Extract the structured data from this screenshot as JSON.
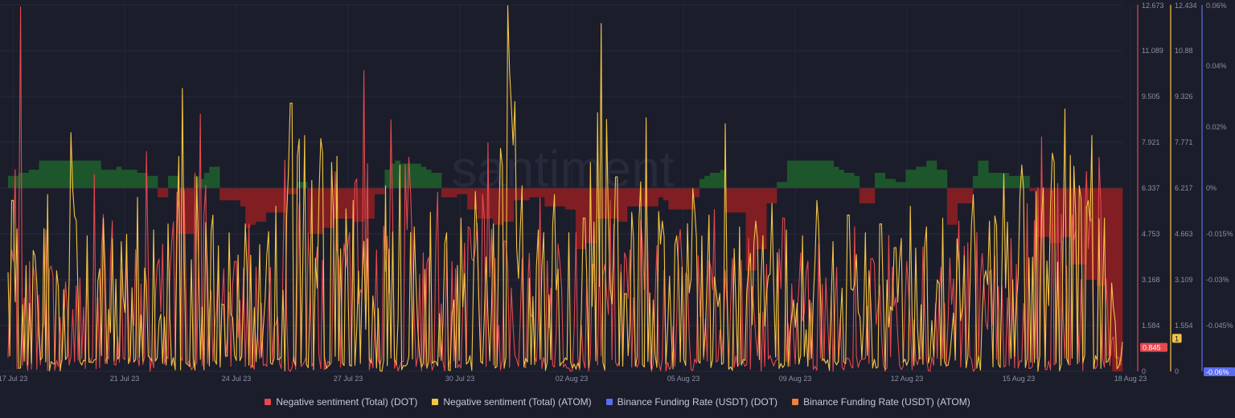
{
  "chart_data": {
    "type": "line",
    "watermark": "santiment",
    "x_ticks": [
      "17 Jul 23",
      "21 Jul 23",
      "24 Jul 23",
      "27 Jul 23",
      "30 Jul 23",
      "02 Aug 23",
      "05 Aug 23",
      "09 Aug 23",
      "12 Aug 23",
      "15 Aug 23",
      "18 Aug 23"
    ],
    "axes": {
      "dot_sentiment": {
        "ticks": [
          "12.673",
          "11.089",
          "9.505",
          "7.921",
          "6.337",
          "4.753",
          "3.168",
          "1.584",
          "0"
        ],
        "range": [
          0,
          12.673
        ],
        "color": "#e5484d"
      },
      "atom_sentiment": {
        "ticks": [
          "12.434",
          "10.88",
          "9.326",
          "7.771",
          "6.217",
          "4.663",
          "3.109",
          "1.554",
          "0"
        ],
        "range": [
          0,
          12.434
        ],
        "color": "#f5c542"
      },
      "funding_rate": {
        "ticks": [
          "0.06%",
          "0.04%",
          "0.02%",
          "0%",
          "-0.015%",
          "-0.03%",
          "-0.045%",
          "-0.06%"
        ],
        "range": [
          -0.06,
          0.06
        ],
        "color": "#5b6cf0"
      }
    },
    "last_values": {
      "dot_sentiment": "0.845",
      "atom_sentiment": "1",
      "funding_rate": "-0.06%"
    },
    "series": [
      {
        "name": "Negative sentiment (Total) (DOT)",
        "color": "#e5484d",
        "type": "line",
        "peaks": [
          [
            0.3,
            4.2
          ],
          [
            1.1,
            12.6
          ],
          [
            1.9,
            3.8
          ],
          [
            3.4,
            4.9
          ],
          [
            5.2,
            3.1
          ],
          [
            7.8,
            6.8
          ],
          [
            9.3,
            5.2
          ],
          [
            10.6,
            4.1
          ],
          [
            12.4,
            7.6
          ],
          [
            13.9,
            4.4
          ],
          [
            15.1,
            6.2
          ],
          [
            17.2,
            8.9
          ],
          [
            18.8,
            4.0
          ],
          [
            20.4,
            3.8
          ],
          [
            21.6,
            5.1
          ],
          [
            23.5,
            3.6
          ],
          [
            24.9,
            7.3
          ],
          [
            26.2,
            5.8
          ],
          [
            27.8,
            4.3
          ],
          [
            29.4,
            6.9
          ],
          [
            30.6,
            4.8
          ],
          [
            31.9,
            10.4
          ],
          [
            33.1,
            4.2
          ],
          [
            34.4,
            8.7
          ],
          [
            35.9,
            7.4
          ],
          [
            37.2,
            4.1
          ],
          [
            38.6,
            6.2
          ],
          [
            39.8,
            3.8
          ],
          [
            41.3,
            5.0
          ],
          [
            43.0,
            7.9
          ],
          [
            44.6,
            4.5
          ],
          [
            46.1,
            3.9
          ],
          [
            47.8,
            6.0
          ],
          [
            49.3,
            4.4
          ],
          [
            51.0,
            4.8
          ],
          [
            52.5,
            3.7
          ],
          [
            54.1,
            5.9
          ],
          [
            55.8,
            4.2
          ],
          [
            57.2,
            6.7
          ],
          [
            58.9,
            3.5
          ],
          [
            60.3,
            4.9
          ],
          [
            61.9,
            4.0
          ],
          [
            63.4,
            5.6
          ],
          [
            65.0,
            3.9
          ],
          [
            66.5,
            4.6
          ],
          [
            68.0,
            3.7
          ],
          [
            69.6,
            5.3
          ],
          [
            71.2,
            4.1
          ],
          [
            72.7,
            4.4
          ],
          [
            74.3,
            3.6
          ],
          [
            75.9,
            5.0
          ],
          [
            77.5,
            3.9
          ],
          [
            79.0,
            4.7
          ],
          [
            80.6,
            3.8
          ],
          [
            82.1,
            4.3
          ],
          [
            83.7,
            3.6
          ],
          [
            85.3,
            5.2
          ],
          [
            86.9,
            4.8
          ],
          [
            88.5,
            4.0
          ],
          [
            90.0,
            4.6
          ],
          [
            91.5,
            5.8
          ],
          [
            92.8,
            8.1
          ],
          [
            94.2,
            6.5
          ],
          [
            95.5,
            5.4
          ],
          [
            96.8,
            6.9
          ],
          [
            97.9,
            7.4
          ],
          [
            98.6,
            3.2
          ],
          [
            99.2,
            1.2
          ],
          [
            100,
            0.845
          ]
        ]
      },
      {
        "name": "Negative sentiment (Total) (ATOM)",
        "color": "#f5c542",
        "type": "line",
        "peaks": [
          [
            0.4,
            5.8
          ],
          [
            2.3,
            4.1
          ],
          [
            3.5,
            6.0
          ],
          [
            5.7,
            8.1
          ],
          [
            7.1,
            4.6
          ],
          [
            8.6,
            5.2
          ],
          [
            10.1,
            4.4
          ],
          [
            11.6,
            5.9
          ],
          [
            13.0,
            4.8
          ],
          [
            14.3,
            5.0
          ],
          [
            15.7,
            9.6
          ],
          [
            17.0,
            6.6
          ],
          [
            18.4,
            5.3
          ],
          [
            19.9,
            4.7
          ],
          [
            21.3,
            5.0
          ],
          [
            22.6,
            4.3
          ],
          [
            24.0,
            5.6
          ],
          [
            25.4,
            9.1
          ],
          [
            26.6,
            8.0
          ],
          [
            28.0,
            7.9
          ],
          [
            29.5,
            7.3
          ],
          [
            31.0,
            5.8
          ],
          [
            32.3,
            4.5
          ],
          [
            33.8,
            6.3
          ],
          [
            35.2,
            7.0
          ],
          [
            36.4,
            4.9
          ],
          [
            37.9,
            5.4
          ],
          [
            39.3,
            4.7
          ],
          [
            40.6,
            5.2
          ],
          [
            42.0,
            6.1
          ],
          [
            43.5,
            5.0
          ],
          [
            44.9,
            12.4
          ],
          [
            46.2,
            6.3
          ],
          [
            47.6,
            4.8
          ],
          [
            49.0,
            6.0
          ],
          [
            50.3,
            4.7
          ],
          [
            51.7,
            5.2
          ],
          [
            53.2,
            11.8
          ],
          [
            54.6,
            6.6
          ],
          [
            56.0,
            5.4
          ],
          [
            57.3,
            8.6
          ],
          [
            58.7,
            5.1
          ],
          [
            60.0,
            4.6
          ],
          [
            61.4,
            6.2
          ],
          [
            62.9,
            5.3
          ],
          [
            64.3,
            8.4
          ],
          [
            65.7,
            4.9
          ],
          [
            67.1,
            5.1
          ],
          [
            68.5,
            5.7
          ],
          [
            69.8,
            4.8
          ],
          [
            71.3,
            4.6
          ],
          [
            72.6,
            5.8
          ],
          [
            74.0,
            4.4
          ],
          [
            75.4,
            5.3
          ],
          [
            76.9,
            4.7
          ],
          [
            78.3,
            5.0
          ],
          [
            79.6,
            4.2
          ],
          [
            81.0,
            5.6
          ],
          [
            82.4,
            4.9
          ],
          [
            83.9,
            5.2
          ],
          [
            85.2,
            4.5
          ],
          [
            86.6,
            6.0
          ],
          [
            88.0,
            5.1
          ],
          [
            89.4,
            6.7
          ],
          [
            90.9,
            7.0
          ],
          [
            92.3,
            6.1
          ],
          [
            93.7,
            7.4
          ],
          [
            94.9,
            8.9
          ],
          [
            96.2,
            6.3
          ],
          [
            97.3,
            8.0
          ],
          [
            98.4,
            5.2
          ],
          [
            99.1,
            3.0
          ],
          [
            100,
            1.0
          ]
        ]
      },
      {
        "name": "Binance Funding Rate (USDT) (DOT)",
        "color": "#5b6cf0",
        "type": "bar",
        "values": []
      },
      {
        "name": "Binance Funding Rate (USDT) (ATOM)",
        "color": "#f0803c",
        "type": "bar",
        "values": [
          0.004,
          0.004,
          0.005,
          0.005,
          0.006,
          0.006,
          0.009,
          0.009,
          0.009,
          0.009,
          0.009,
          0.009,
          0.009,
          0.009,
          0.009,
          0.009,
          0.009,
          0.009,
          0.006,
          0.006,
          0.006,
          0.007,
          0.006,
          0.006,
          0.006,
          0.005,
          0.005,
          0.004,
          0.004,
          -0.003,
          -0.003,
          0.004,
          0.004,
          -0.015,
          -0.015,
          -0.015,
          0.004,
          0.003,
          0.005,
          0.007,
          0.007,
          -0.004,
          -0.004,
          -0.004,
          -0.004,
          -0.006,
          -0.013,
          -0.012,
          -0.011,
          -0.011,
          -0.008,
          -0.008,
          -0.008,
          -0.008,
          -0.002,
          -0.002,
          0.002,
          0.002,
          -0.015,
          -0.015,
          -0.015,
          -0.013,
          -0.013,
          -0.01,
          -0.01,
          -0.01,
          -0.01,
          -0.011,
          -0.011,
          -0.01,
          -0.01,
          -0.002,
          -0.002,
          0.006,
          0.008,
          0.009,
          0.008,
          0.008,
          0.008,
          0.008,
          0.007,
          0.006,
          0.005,
          0.005,
          -0.003,
          -0.003,
          -0.003,
          -0.002,
          -0.002,
          -0.007,
          -0.007,
          -0.01,
          -0.01,
          -0.01,
          -0.012,
          -0.012,
          -0.011,
          -0.011,
          -0.004,
          -0.004,
          -0.004,
          -0.003,
          -0.003,
          -0.003,
          -0.006,
          -0.006,
          -0.006,
          -0.006,
          -0.007,
          -0.007,
          -0.02,
          -0.02,
          -0.018,
          -0.018,
          -0.01,
          -0.01,
          -0.01,
          -0.01,
          -0.011,
          -0.011,
          -0.006,
          -0.006,
          -0.006,
          -0.006,
          -0.006,
          -0.006,
          -0.003,
          -0.004,
          -0.007,
          -0.007,
          -0.007,
          -0.007,
          -0.007,
          -0.003,
          0.003,
          0.004,
          0.005,
          0.005,
          0.006,
          -0.008,
          -0.008,
          -0.008,
          -0.008,
          -0.027,
          -0.027,
          -0.02,
          -0.02,
          -0.005,
          -0.005,
          0.002,
          0.002,
          0.009,
          0.009,
          0.009,
          0.009,
          0.009,
          0.009,
          0.009,
          0.009,
          0.009,
          0.007,
          0.006,
          0.005,
          0.005,
          0.004,
          -0.005,
          -0.005,
          -0.005,
          0.005,
          0.005,
          0.003,
          0.003,
          0.002,
          0.002,
          0.006,
          0.006,
          0.007,
          0.007,
          0.009,
          0.009,
          0.006,
          0.006,
          -0.012,
          -0.012,
          -0.005,
          -0.005,
          -0.005,
          0.004,
          0.009,
          0.009,
          0.005,
          0.005,
          0.005,
          0.005,
          0.004,
          0.004,
          0.004,
          0.004,
          -0.001,
          -0.016,
          -0.016,
          -0.016,
          -0.018,
          -0.018,
          -0.016,
          -0.016,
          -0.025,
          -0.025,
          -0.025,
          -0.03,
          -0.03,
          -0.032,
          -0.032,
          -0.055,
          -0.06,
          -0.06
        ]
      }
    ]
  },
  "legend": [
    {
      "label": "Negative sentiment (Total) (DOT)",
      "color": "#e5484d"
    },
    {
      "label": "Negative sentiment (Total) (ATOM)",
      "color": "#f5c542"
    },
    {
      "label": "Binance Funding Rate (USDT) (DOT)",
      "color": "#5b6cf0"
    },
    {
      "label": "Binance Funding Rate (USDT) (ATOM)",
      "color": "#f0803c"
    }
  ]
}
